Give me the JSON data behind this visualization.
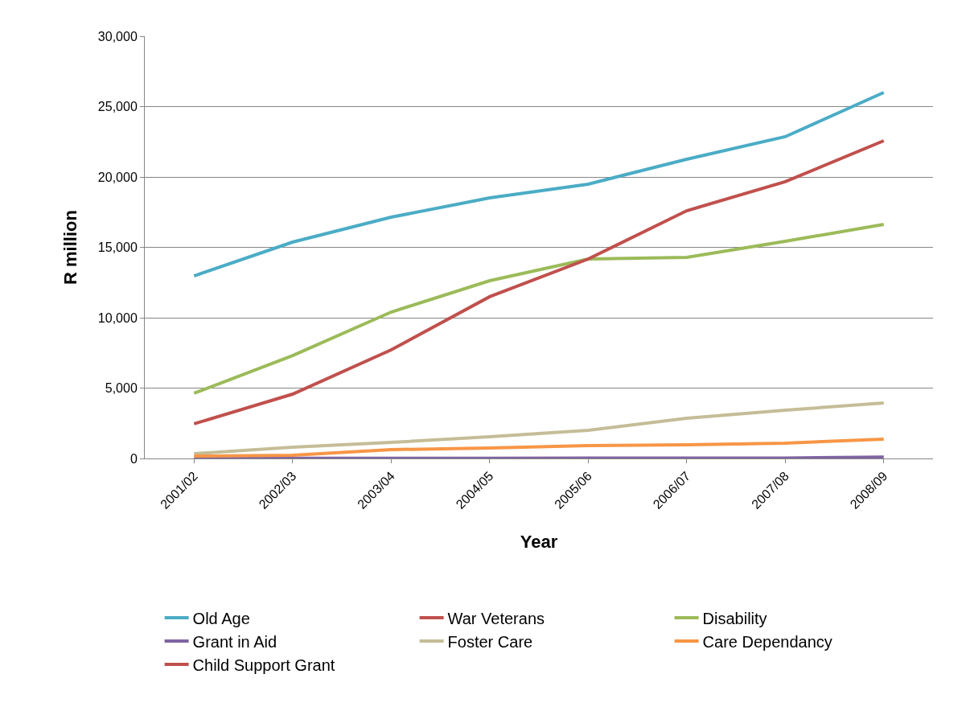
{
  "chart_data": {
    "type": "line",
    "xlabel": "Year",
    "ylabel": "R million",
    "categories": [
      "2001/02",
      "2002/03",
      "2003/04",
      "2004/05",
      "2005/06",
      "2006/07",
      "2007/08",
      "2008/09"
    ],
    "series": [
      {
        "name": "Old Age",
        "color": "#4bacc6",
        "values": [
          12970,
          15370,
          17140,
          18510,
          19490,
          21260,
          22860,
          26000
        ]
      },
      {
        "name": "War Veterans",
        "color": "#c0504d",
        "values": [
          null,
          null,
          null,
          null,
          null,
          null,
          null,
          null
        ]
      },
      {
        "name": "Disability",
        "color": "#9bbb59",
        "values": [
          4630,
          7310,
          10400,
          12630,
          14170,
          14290,
          15430,
          16630
        ]
      },
      {
        "name": "Grant in Aid",
        "color": "#8064a2",
        "values": [
          20,
          20,
          20,
          20,
          25,
          25,
          30,
          100
        ]
      },
      {
        "name": "Foster Care",
        "color": "#c4bd97",
        "values": [
          340,
          800,
          1140,
          1540,
          2000,
          2860,
          3430,
          3940
        ]
      },
      {
        "name": "Care Dependancy",
        "color": "#f79646",
        "values": [
          170,
          230,
          630,
          740,
          910,
          970,
          1090,
          1370
        ]
      },
      {
        "name": "Child Support Grant",
        "color": "#c0504d",
        "values": [
          2460,
          4570,
          7710,
          11490,
          14170,
          17600,
          19660,
          22570
        ]
      }
    ],
    "ylim": [
      0,
      30000
    ],
    "yticks": [
      {
        "value": 0,
        "label": "0"
      },
      {
        "value": 5000,
        "label": "5,000"
      },
      {
        "value": 10000,
        "label": "10,000"
      },
      {
        "value": 15000,
        "label": "15,000"
      },
      {
        "value": 20000,
        "label": "20,000"
      },
      {
        "value": 25000,
        "label": "25,000"
      },
      {
        "value": 30000,
        "label": "30,000"
      }
    ],
    "grid": "y",
    "legend": "bottom",
    "marker": "none",
    "line_style": "solid"
  }
}
